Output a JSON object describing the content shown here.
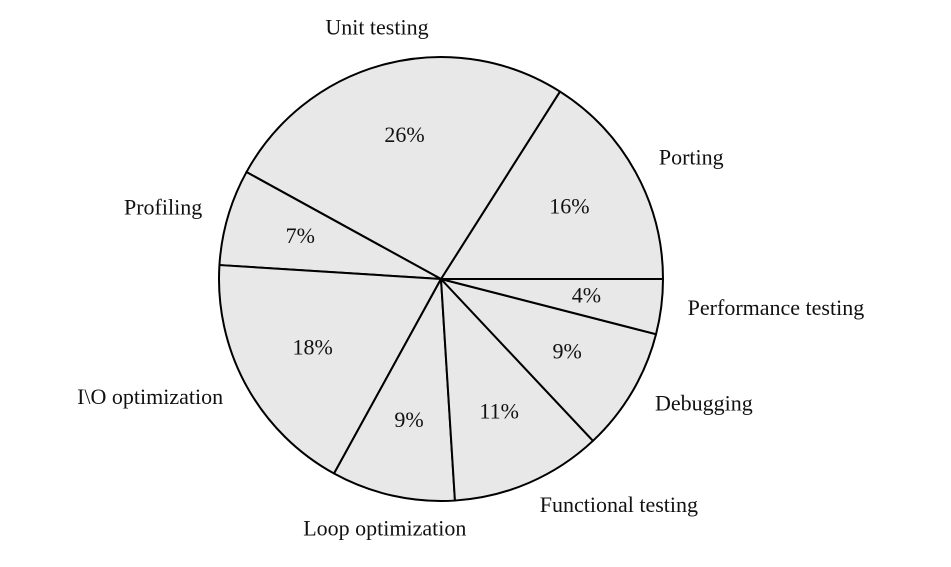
{
  "chart_data": {
    "type": "pie",
    "categories": [
      "Porting",
      "Unit testing",
      "Profiling",
      "I\\O optimization",
      "Loop optimization",
      "Functional testing",
      "Debugging",
      "Performance testing"
    ],
    "values": [
      16,
      26,
      7,
      18,
      9,
      11,
      9,
      4
    ],
    "value_labels": [
      "16%",
      "26%",
      "7%",
      "18%",
      "9%",
      "11%",
      "9%",
      "4%"
    ],
    "color": "#e8e8e8"
  }
}
